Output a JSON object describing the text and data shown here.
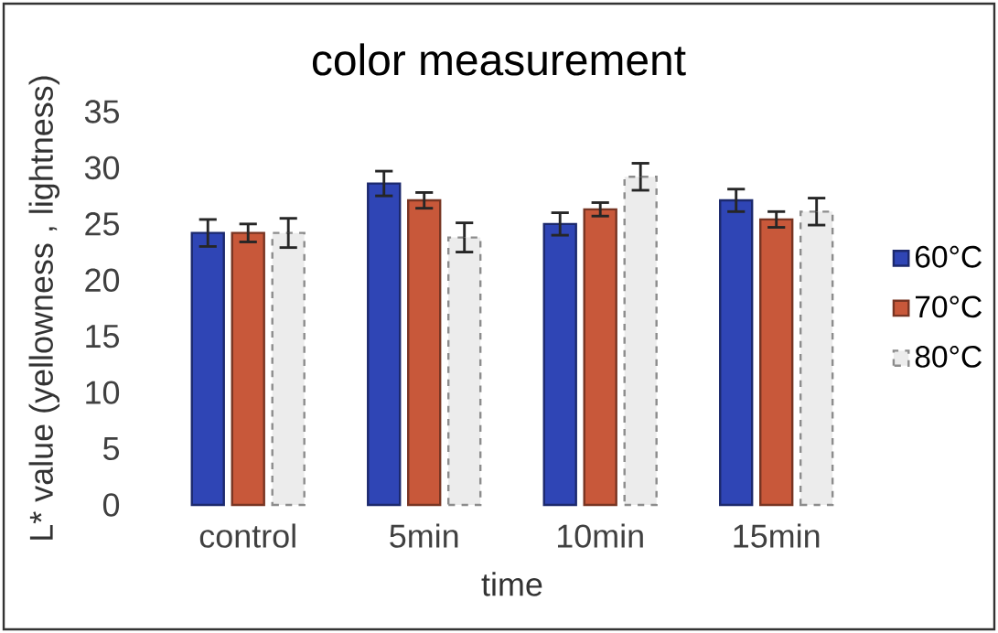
{
  "chart_data": {
    "type": "bar",
    "title": "color measurement",
    "xlabel": "time",
    "ylabel": "L* value (yellowness , lightness)",
    "categories": [
      "control",
      "5min",
      "10min",
      "15min"
    ],
    "series": [
      {
        "name": "60°C",
        "color": "#2f45b5",
        "values": [
          24.2,
          28.6,
          25.0,
          27.1
        ],
        "errors": [
          1.2,
          1.1,
          1.0,
          1.0
        ]
      },
      {
        "name": "70°C",
        "color": "#c8583a",
        "values": [
          24.2,
          27.1,
          26.3,
          25.4
        ],
        "errors": [
          0.8,
          0.7,
          0.6,
          0.7
        ]
      },
      {
        "name": "80°C",
        "color": "#ececec",
        "values": [
          24.2,
          23.8,
          29.2,
          26.1
        ],
        "errors": [
          1.3,
          1.3,
          1.2,
          1.2
        ]
      }
    ],
    "ylim": [
      0,
      35
    ],
    "yticks": [
      0,
      5,
      10,
      15,
      20,
      25,
      30,
      35
    ],
    "legend": "right"
  }
}
